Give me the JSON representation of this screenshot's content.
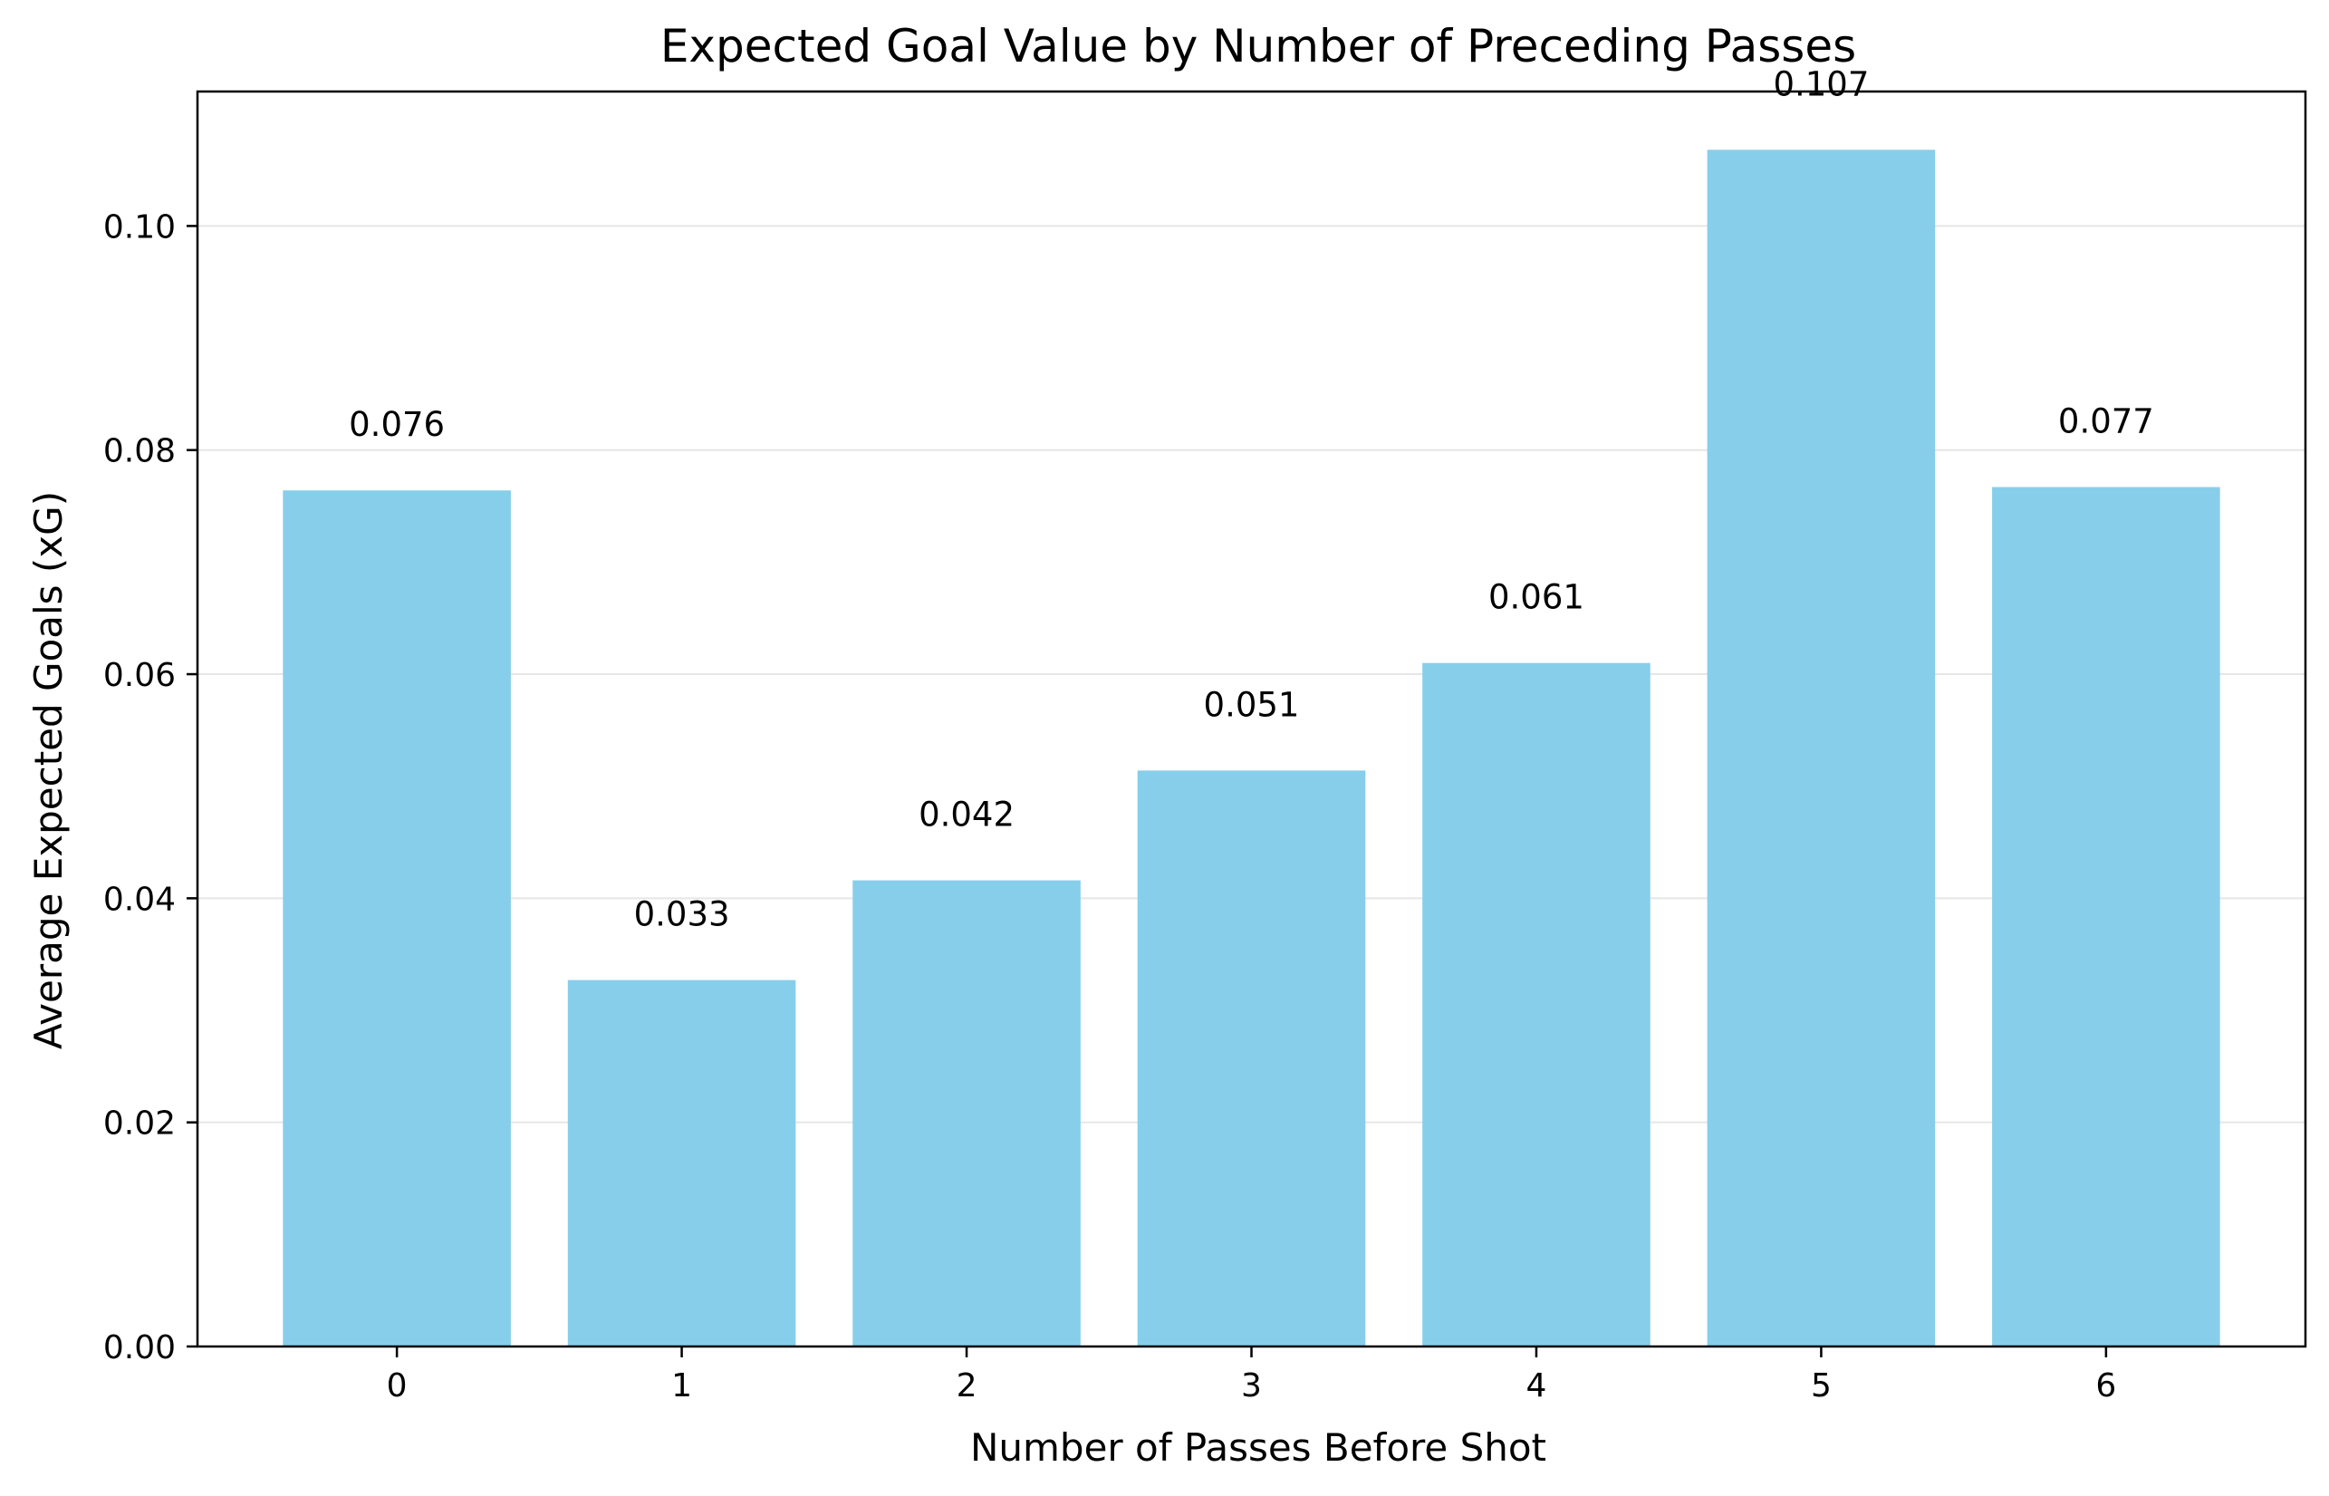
{
  "chart_data": {
    "type": "bar",
    "title": "Expected Goal Value by Number of Preceding Passes",
    "xlabel": "Number of Passes Before Shot",
    "ylabel": "Average Expected Goals (xG)",
    "categories": [
      "0",
      "1",
      "2",
      "3",
      "4",
      "5",
      "6"
    ],
    "values": [
      0.0764,
      0.0327,
      0.0416,
      0.0514,
      0.061,
      0.1068,
      0.0767
    ],
    "data_labels": [
      "0.076",
      "0.033",
      "0.042",
      "0.051",
      "0.061",
      "0.107",
      "0.077"
    ],
    "ylim": [
      0,
      0.112
    ],
    "yticks": [
      0.0,
      0.02,
      0.04,
      0.06,
      0.08,
      0.1
    ],
    "ytick_labels": [
      "0.00",
      "0.02",
      "0.04",
      "0.06",
      "0.08",
      "0.10"
    ],
    "grid": {
      "axis": "y",
      "on": true
    },
    "legend": "none",
    "colors": {
      "bar": "#87ceeb",
      "grid": "#e6e6e6",
      "axis": "#000000",
      "text": "#000000"
    }
  }
}
